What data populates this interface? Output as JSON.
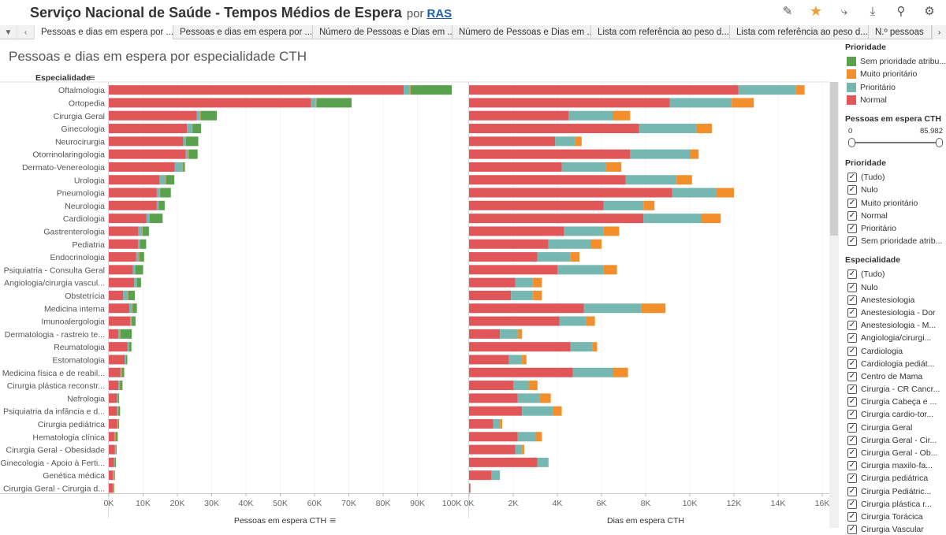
{
  "header": {
    "title": "Serviço Nacional de Saúde - Tempos Médios de Espera",
    "by": "por",
    "author": "RAS",
    "icons": [
      "edit-icon",
      "star-icon",
      "share-icon",
      "download-icon",
      "subscribe-icon",
      "settings-icon"
    ]
  },
  "tabs": [
    "Pessoas e dias em espera por ...",
    "Pessoas e dias em espera por ...",
    "Número de Pessoas e Dias em ...",
    "Número de Pessoas e Dias em ...",
    "Lista com referência ao peso d...",
    "Lista com referência ao peso d...",
    "N.º pessoas"
  ],
  "sheet_title": "Pessoas e dias em espera por especialidade CTH",
  "chart_data": {
    "type": "bar",
    "orientation": "horizontal",
    "stacked": true,
    "row_header": "Especialidade",
    "categories": [
      "Oftalmologia",
      "Ortopedia",
      "Cirurgia Geral",
      "Ginecologia",
      "Neurocirurgia",
      "Otorrinolaringologia",
      "Dermato-Venereologia",
      "Urologia",
      "Pneumologia",
      "Neurologia",
      "Cardiologia",
      "Gastrenterologia",
      "Pediatria",
      "Endocrinologia",
      "Psiquiatria - Consulta Geral",
      "Angiologia/cirurgia vascul...",
      "Obstetrícia",
      "Medicina interna",
      "Imunoalergologia",
      "Dermatologia - rastreio te...",
      "Reumatologia",
      "Estomatologia",
      "Medicina física e de reabil...",
      "Cirurgia plástica reconstr...",
      "Nefrologia",
      "Psiquiatria da infância e d...",
      "Cirurgia pediátrica",
      "Hematologia clínica",
      "Cirurgia Geral - Obesidade",
      "Ginecologia - Apoio à Ferti...",
      "Genética médica",
      "Cirurgia Geral - Cirurgia d..."
    ],
    "series_colors": {
      "Normal": "#e15759",
      "Prioritário": "#76b7b2",
      "Muito prioritário": "#f28e2b",
      "Sem prioridade atribuída": "#59a14f"
    },
    "charts": [
      {
        "xlabel": "Pessoas em espera CTH",
        "xlim": [
          0,
          100000
        ],
        "ticks": [
          "0K",
          "10K",
          "20K",
          "30K",
          "40K",
          "50K",
          "60K",
          "70K",
          "80K",
          "90K",
          "100K"
        ],
        "series": [
          {
            "name": "Normal",
            "values": [
              86000,
              59000,
              25700,
              22800,
              21700,
              22400,
              19200,
              14800,
              14000,
              14000,
              11000,
              8600,
              8500,
              8000,
              7000,
              7400,
              4200,
              6000,
              6200,
              2800,
              5400,
              4600,
              3400,
              2800,
              2400,
              2400,
              2500,
              1600,
              1800,
              1500,
              1200,
              1200
            ]
          },
          {
            "name": "Prioritário",
            "values": [
              1800,
              1400,
              900,
              1400,
              600,
              700,
              2400,
              1800,
              900,
              500,
              800,
              1200,
              500,
              800,
              700,
              700,
              1400,
              900,
              400,
              500,
              400,
              300,
              300,
              400,
              200,
              300,
              200,
              300,
              200,
              200,
              300,
              100
            ]
          },
          {
            "name": "Muito prioritário",
            "values": [
              200,
              200,
              200,
              200,
              200,
              200,
              100,
              100,
              100,
              100,
              100,
              100,
              100,
              100,
              100,
              100,
              100,
              100,
              100,
              100,
              100,
              100,
              100,
              100,
              100,
              100,
              100,
              100,
              100,
              100,
              100,
              100
            ]
          },
          {
            "name": "Sem prioridade atribuída",
            "values": [
              12000,
              10200,
              4700,
              2500,
              3600,
              2600,
              500,
              2400,
              3100,
              1700,
              3800,
              1800,
              1800,
              1400,
              2200,
              1200,
              1900,
              1200,
              1100,
              3300,
              700,
              400,
              700,
              700,
              300,
              500,
              200,
              600,
              100,
              300,
              100,
              100
            ]
          }
        ]
      },
      {
        "xlabel": "Dias em espera CTH",
        "xlim": [
          0,
          16000
        ],
        "ticks": [
          "0K",
          "2K",
          "4K",
          "6K",
          "8K",
          "10K",
          "12K",
          "14K",
          "16K"
        ],
        "series": [
          {
            "name": "Normal",
            "values": [
              12200,
              9100,
              4500,
              7700,
              3900,
              7300,
              4200,
              7100,
              9200,
              6100,
              7900,
              4300,
              3600,
              3100,
              4000,
              2100,
              1900,
              5200,
              4100,
              1400,
              4600,
              1800,
              4700,
              2000,
              2200,
              2400,
              1100,
              2200,
              2100,
              3100,
              1000,
              60
            ]
          },
          {
            "name": "Prioritário",
            "values": [
              2600,
              2800,
              2000,
              2600,
              900,
              2700,
              2000,
              2300,
              2000,
              1800,
              2600,
              1800,
              1900,
              1500,
              2100,
              800,
              1000,
              2600,
              1200,
              800,
              1000,
              600,
              1800,
              700,
              1000,
              1400,
              300,
              800,
              300,
              500,
              400,
              0
            ]
          },
          {
            "name": "Muito prioritário",
            "values": [
              400,
              1000,
              800,
              700,
              300,
              400,
              700,
              700,
              800,
              500,
              900,
              700,
              500,
              400,
              600,
              400,
              400,
              1100,
              400,
              200,
              200,
              200,
              700,
              400,
              500,
              400,
              100,
              300,
              100,
              0,
              0,
              0
            ]
          },
          {
            "name": "Sem prioridade atribuída",
            "values": [
              0,
              0,
              0,
              0,
              0,
              0,
              0,
              0,
              0,
              0,
              0,
              0,
              0,
              0,
              0,
              0,
              0,
              0,
              0,
              0,
              0,
              0,
              0,
              0,
              0,
              0,
              0,
              0,
              0,
              0,
              0,
              0
            ]
          }
        ]
      }
    ]
  },
  "sidebar": {
    "legend_title": "Prioridade",
    "legend": [
      {
        "label": "Sem prioridade atribu...",
        "color": "#59a14f"
      },
      {
        "label": "Muito prioritário",
        "color": "#f28e2b"
      },
      {
        "label": "Prioritário",
        "color": "#76b7b2"
      },
      {
        "label": "Normal",
        "color": "#e15759"
      }
    ],
    "slider_title": "Pessoas em espera CTH",
    "slider_min": "0",
    "slider_max": "85.982",
    "prioridade_title": "Prioridade",
    "prioridade_items": [
      "(Tudo)",
      "Nulo",
      "Muito prioritário",
      "Normal",
      "Prioritário",
      "Sem prioridade atrib..."
    ],
    "especialidade_title": "Especialidade",
    "especialidade_items": [
      "(Tudo)",
      "Nulo",
      "Anestesiologia",
      "Anestesiologia - Dor",
      "Anestesiologia - M...",
      "Angiologia/cirurgi...",
      "Cardiologia",
      "Cardiologia pediát...",
      "Centro de Mama",
      "Cirurgia - CR Cancr...",
      "Cirurgia Cabeça e ...",
      "Cirurgia cardio-tor...",
      "Cirurgia Geral",
      "Cirurgia Geral - Cir...",
      "Cirurgia Geral - Ob...",
      "Cirurgia maxilo-fa...",
      "Cirurgia pediátrica",
      "Cirurgia Pediátric...",
      "Cirurgia plástica r...",
      "Cirurgia Torácica",
      "Cirurgia Vascular"
    ]
  }
}
